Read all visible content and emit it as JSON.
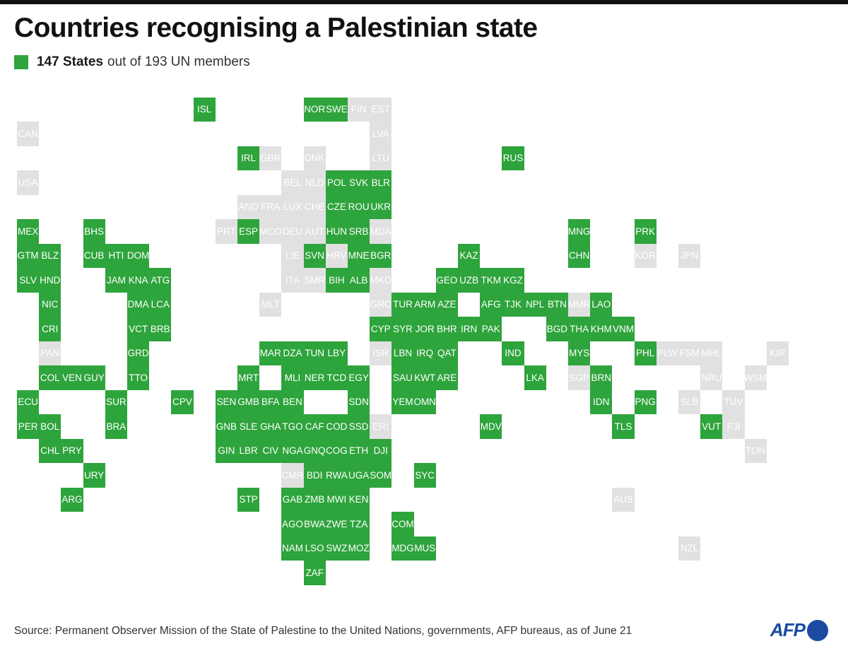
{
  "title": "Countries recognising a Palestinian state",
  "legend": {
    "count_label": "147 States",
    "rest_label": "out of 193 UN members",
    "color": "#2ea43c"
  },
  "colors": {
    "recognised": "#2ea43c",
    "not_recognised": "#e1e1e1"
  },
  "source": "Source: Permanent Observer Mission of the State of Palestine to the United Nations, governments, AFP bureaus, as of June 21",
  "logo": "AFP",
  "map_grid": {
    "recognised": [
      [
        "ISL",
        9,
        0
      ],
      [
        "NOR",
        14,
        0
      ],
      [
        "SWE",
        15,
        0
      ],
      [
        "IRL",
        11,
        2
      ],
      [
        "RUS",
        23,
        2
      ],
      [
        "POL",
        15,
        3
      ],
      [
        "SVK",
        16,
        3
      ],
      [
        "BLR",
        17,
        3
      ],
      [
        "CZE",
        15,
        4
      ],
      [
        "ROU",
        16,
        4
      ],
      [
        "UKR",
        17,
        4
      ],
      [
        "MEX",
        1,
        5
      ],
      [
        "BHS",
        4,
        5
      ],
      [
        "ESP",
        11,
        5
      ],
      [
        "HUN",
        15,
        5
      ],
      [
        "SRB",
        16,
        5
      ],
      [
        "MNG",
        26,
        5
      ],
      [
        "PRK",
        29,
        5
      ],
      [
        "GTM",
        1,
        6
      ],
      [
        "BLZ",
        2,
        6
      ],
      [
        "CUB",
        4,
        6
      ],
      [
        "HTI",
        5,
        6
      ],
      [
        "DOM",
        6,
        6
      ],
      [
        "SVN",
        14,
        6
      ],
      [
        "MNE",
        16,
        6
      ],
      [
        "BGR",
        17,
        6
      ],
      [
        "KAZ",
        21,
        6
      ],
      [
        "CHN",
        26,
        6
      ],
      [
        "SLV",
        1,
        7
      ],
      [
        "HND",
        2,
        7
      ],
      [
        "JAM",
        5,
        7
      ],
      [
        "KNA",
        6,
        7
      ],
      [
        "ATG",
        7,
        7
      ],
      [
        "BIH",
        15,
        7
      ],
      [
        "ALB",
        16,
        7
      ],
      [
        "GEO",
        20,
        7
      ],
      [
        "UZB",
        21,
        7
      ],
      [
        "TKM",
        22,
        7
      ],
      [
        "KGZ",
        23,
        7
      ],
      [
        "NIC",
        2,
        8
      ],
      [
        "DMA",
        6,
        8
      ],
      [
        "LCA",
        7,
        8
      ],
      [
        "TUR",
        18,
        8
      ],
      [
        "ARM",
        19,
        8
      ],
      [
        "AZE",
        20,
        8
      ],
      [
        "AFG",
        22,
        8
      ],
      [
        "TJK",
        23,
        8
      ],
      [
        "NPL",
        24,
        8
      ],
      [
        "BTN",
        25,
        8
      ],
      [
        "LAO",
        27,
        8
      ],
      [
        "CRI",
        2,
        9
      ],
      [
        "VCT",
        6,
        9
      ],
      [
        "BRB",
        7,
        9
      ],
      [
        "CYP",
        17,
        9
      ],
      [
        "SYR",
        18,
        9
      ],
      [
        "JOR",
        19,
        9
      ],
      [
        "BHR",
        20,
        9
      ],
      [
        "IRN",
        21,
        9
      ],
      [
        "PAK",
        22,
        9
      ],
      [
        "BGD",
        25,
        9
      ],
      [
        "THA",
        26,
        9
      ],
      [
        "KHM",
        27,
        9
      ],
      [
        "VNM",
        28,
        9
      ],
      [
        "GRD",
        6,
        10
      ],
      [
        "MAR",
        12,
        10
      ],
      [
        "DZA",
        13,
        10
      ],
      [
        "TUN",
        14,
        10
      ],
      [
        "LBY",
        15,
        10
      ],
      [
        "LBN",
        18,
        10
      ],
      [
        "IRQ",
        19,
        10
      ],
      [
        "QAT",
        20,
        10
      ],
      [
        "IND",
        23,
        10
      ],
      [
        "MYS",
        26,
        10
      ],
      [
        "PHL",
        29,
        10
      ],
      [
        "COL",
        2,
        11
      ],
      [
        "VEN",
        3,
        11
      ],
      [
        "GUY",
        4,
        11
      ],
      [
        "TTO",
        6,
        11
      ],
      [
        "MRT",
        11,
        11
      ],
      [
        "MLI",
        13,
        11
      ],
      [
        "NER",
        14,
        11
      ],
      [
        "TCD",
        15,
        11
      ],
      [
        "EGY",
        16,
        11
      ],
      [
        "SAU",
        18,
        11
      ],
      [
        "KWT",
        19,
        11
      ],
      [
        "ARE",
        20,
        11
      ],
      [
        "LKA",
        24,
        11
      ],
      [
        "BRN",
        27,
        11
      ],
      [
        "ECU",
        1,
        12
      ],
      [
        "SUR",
        5,
        12
      ],
      [
        "CPV",
        8,
        12
      ],
      [
        "SEN",
        10,
        12
      ],
      [
        "GMB",
        11,
        12
      ],
      [
        "BFA",
        12,
        12
      ],
      [
        "BEN",
        13,
        12
      ],
      [
        "SDN",
        16,
        12
      ],
      [
        "YEM",
        18,
        12
      ],
      [
        "OMN",
        19,
        12
      ],
      [
        "IDN",
        27,
        12
      ],
      [
        "PNG",
        29,
        12
      ],
      [
        "PER",
        1,
        13
      ],
      [
        "BOL",
        2,
        13
      ],
      [
        "BRA",
        5,
        13
      ],
      [
        "GNB",
        10,
        13
      ],
      [
        "SLE",
        11,
        13
      ],
      [
        "GHA",
        12,
        13
      ],
      [
        "TGO",
        13,
        13
      ],
      [
        "CAF",
        14,
        13
      ],
      [
        "COD",
        15,
        13
      ],
      [
        "SSD",
        16,
        13
      ],
      [
        "MDV",
        22,
        13
      ],
      [
        "TLS",
        28,
        13
      ],
      [
        "VUT",
        32,
        13
      ],
      [
        "CHL",
        2,
        14
      ],
      [
        "PRY",
        3,
        14
      ],
      [
        "GIN",
        10,
        14
      ],
      [
        "LBR",
        11,
        14
      ],
      [
        "CIV",
        12,
        14
      ],
      [
        "NGA",
        13,
        14
      ],
      [
        "GNQ",
        14,
        14
      ],
      [
        "COG",
        15,
        14
      ],
      [
        "ETH",
        16,
        14
      ],
      [
        "DJI",
        17,
        14
      ],
      [
        "URY",
        4,
        15
      ],
      [
        "BDI",
        14,
        15
      ],
      [
        "RWA",
        15,
        15
      ],
      [
        "UGA",
        16,
        15
      ],
      [
        "SOM",
        17,
        15
      ],
      [
        "SYC",
        19,
        15
      ],
      [
        "ARG",
        3,
        16
      ],
      [
        "STP",
        11,
        16
      ],
      [
        "GAB",
        13,
        16
      ],
      [
        "ZMB",
        14,
        16
      ],
      [
        "MWI",
        15,
        16
      ],
      [
        "KEN",
        16,
        16
      ],
      [
        "AGO",
        13,
        17
      ],
      [
        "BWA",
        14,
        17
      ],
      [
        "ZWE",
        15,
        17
      ],
      [
        "TZA",
        16,
        17
      ],
      [
        "COM",
        18,
        17
      ],
      [
        "NAM",
        13,
        18
      ],
      [
        "LSO",
        14,
        18
      ],
      [
        "SWZ",
        15,
        18
      ],
      [
        "MOZ",
        16,
        18
      ],
      [
        "MDG",
        18,
        18
      ],
      [
        "MUS",
        19,
        18
      ],
      [
        "ZAF",
        14,
        19
      ]
    ],
    "not_recognised": [
      [
        "FIN",
        16,
        0
      ],
      [
        "EST",
        17,
        0
      ],
      [
        "CAN",
        1,
        1
      ],
      [
        "LVA",
        17,
        1
      ],
      [
        "GBR",
        12,
        2
      ],
      [
        "DNK",
        14,
        2
      ],
      [
        "LTU",
        17,
        2
      ],
      [
        "USA",
        1,
        3
      ],
      [
        "BEL",
        13,
        3
      ],
      [
        "NLD",
        14,
        3
      ],
      [
        "AND",
        11,
        4
      ],
      [
        "FRA",
        12,
        4
      ],
      [
        "LUX",
        13,
        4
      ],
      [
        "CHE",
        14,
        4
      ],
      [
        "PRT",
        10,
        5
      ],
      [
        "MCO",
        12,
        5
      ],
      [
        "DEU",
        13,
        5
      ],
      [
        "AUT",
        14,
        5
      ],
      [
        "MDA",
        17,
        5
      ],
      [
        "LIE",
        13,
        6
      ],
      [
        "HRV",
        15,
        6
      ],
      [
        "KOR",
        29,
        6
      ],
      [
        "JPN",
        31,
        6
      ],
      [
        "ITA",
        13,
        7
      ],
      [
        "SMR",
        14,
        7
      ],
      [
        "MKD",
        17,
        7
      ],
      [
        "MLT",
        12,
        8
      ],
      [
        "GRC",
        17,
        8
      ],
      [
        "MMR",
        26,
        8
      ],
      [
        "PAN",
        2,
        10
      ],
      [
        "ISR",
        17,
        10
      ],
      [
        "PLW",
        30,
        10
      ],
      [
        "FSM",
        31,
        10
      ],
      [
        "MHL",
        32,
        10
      ],
      [
        "KIR",
        35,
        10
      ],
      [
        "SGP",
        26,
        11
      ],
      [
        "NRU",
        32,
        11
      ],
      [
        "WSM",
        34,
        11
      ],
      [
        "SLB",
        31,
        12
      ],
      [
        "TUV",
        33,
        12
      ],
      [
        "ERI",
        17,
        13
      ],
      [
        "FJI",
        33,
        13
      ],
      [
        "TON",
        34,
        14
      ],
      [
        "CMR",
        13,
        15
      ],
      [
        "AUS",
        28,
        16
      ],
      [
        "NZL",
        31,
        18
      ]
    ]
  }
}
